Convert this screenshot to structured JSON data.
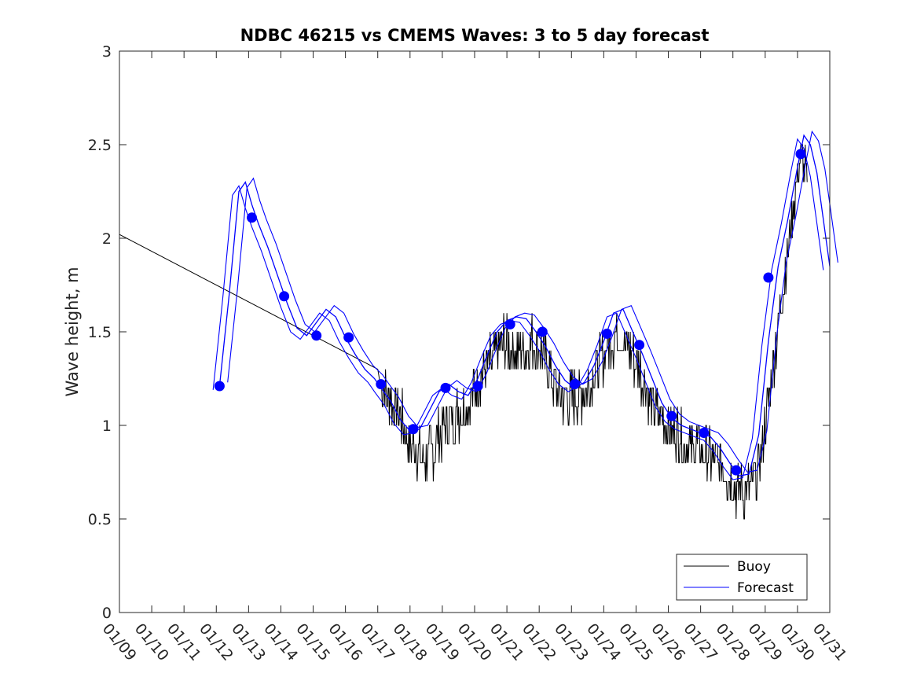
{
  "chart_data": {
    "type": "line",
    "title": "NDBC 46215 vs CMEMS Waves: 3 to 5 day forecast",
    "xlabel": "",
    "ylabel": "Wave height, m",
    "ylim": [
      0,
      3
    ],
    "xlim": [
      9,
      31
    ],
    "yticks": [
      "0",
      "0.5",
      "1",
      "1.5",
      "2",
      "2.5",
      "3"
    ],
    "xtick_labels": [
      "01/09",
      "01/10",
      "01/11",
      "01/12",
      "01/13",
      "01/14",
      "01/15",
      "01/16",
      "01/17",
      "01/18",
      "01/19",
      "01/20",
      "01/21",
      "01/22",
      "01/23",
      "01/24",
      "01/25",
      "01/26",
      "01/27",
      "01/28",
      "01/29",
      "01/30",
      "01/31"
    ],
    "grid": false,
    "legend": {
      "position": "bottom-right",
      "entries": [
        "Buoy",
        "Forecast"
      ]
    },
    "colors": {
      "buoy": "#000000",
      "forecast": "#0000ff"
    },
    "series": [
      {
        "name": "Buoy",
        "x": [
          9,
          17,
          17.1,
          17.4,
          17.7,
          18.0,
          18.3,
          18.5,
          18.8,
          19.1,
          19.4,
          19.7,
          20.0,
          20.3,
          20.6,
          20.9,
          21.2,
          21.5,
          21.8,
          22.1,
          22.4,
          22.7,
          23.0,
          23.3,
          23.6,
          23.9,
          24.2,
          24.5,
          24.8,
          25.1,
          25.4,
          25.7,
          26.0,
          26.3,
          26.6,
          26.9,
          27.2,
          27.5,
          27.8,
          28.1,
          28.4,
          28.7,
          29.0,
          29.3,
          29.6,
          29.9,
          30.1,
          30.3
        ],
        "y": [
          2.02,
          1.3,
          1.2,
          1.15,
          1.05,
          0.9,
          0.85,
          0.82,
          0.9,
          1.0,
          1.05,
          1.1,
          1.2,
          1.3,
          1.35,
          1.45,
          1.4,
          1.4,
          1.45,
          1.4,
          1.25,
          1.15,
          1.15,
          1.15,
          1.25,
          1.35,
          1.45,
          1.5,
          1.4,
          1.3,
          1.15,
          1.05,
          1.0,
          0.95,
          0.9,
          0.88,
          0.85,
          0.8,
          0.75,
          0.65,
          0.65,
          0.7,
          1.0,
          1.4,
          1.8,
          2.2,
          2.45,
          2.3
        ]
      },
      {
        "name": "Forecast",
        "x": [
          12.1,
          12.4,
          12.7,
          12.9,
          13.1,
          13.3,
          13.6,
          13.9,
          14.2,
          14.5,
          14.8,
          15.1,
          15.4,
          15.7,
          16.0,
          16.3,
          16.6,
          16.9,
          17.1,
          17.4,
          17.7,
          18.0,
          18.3,
          18.6,
          18.9,
          19.2,
          19.5,
          19.8,
          20.1,
          20.4,
          20.7,
          21.0,
          21.3,
          21.6,
          21.9,
          22.2,
          22.5,
          22.8,
          23.1,
          23.4,
          23.7,
          24.0,
          24.3,
          24.6,
          24.9,
          25.2,
          25.5,
          25.8,
          26.1,
          26.4,
          26.7,
          27.0,
          27.3,
          27.6,
          27.9,
          28.2,
          28.5,
          28.8,
          29.1,
          29.4,
          29.7,
          30.0,
          30.2,
          30.4,
          30.6,
          30.8,
          31.0
        ],
        "y": [
          1.21,
          1.7,
          2.25,
          2.3,
          2.18,
          2.08,
          1.95,
          1.8,
          1.65,
          1.52,
          1.48,
          1.55,
          1.62,
          1.58,
          1.47,
          1.38,
          1.3,
          1.25,
          1.2,
          1.13,
          1.03,
          0.97,
          0.98,
          1.08,
          1.18,
          1.22,
          1.18,
          1.16,
          1.25,
          1.38,
          1.5,
          1.56,
          1.58,
          1.57,
          1.5,
          1.42,
          1.32,
          1.24,
          1.2,
          1.23,
          1.32,
          1.45,
          1.6,
          1.62,
          1.5,
          1.38,
          1.25,
          1.12,
          1.04,
          1.0,
          0.98,
          0.96,
          0.94,
          0.88,
          0.8,
          0.73,
          0.74,
          0.95,
          1.45,
          1.85,
          2.1,
          2.38,
          2.55,
          2.5,
          2.35,
          2.1,
          1.85
        ]
      }
    ],
    "forecast_markers": {
      "x": [
        12.1,
        13.1,
        14.1,
        15.1,
        16.1,
        17.1,
        18.1,
        19.1,
        20.1,
        21.1,
        22.1,
        23.1,
        24.1,
        25.1,
        26.1,
        27.1,
        28.1,
        29.1,
        30.1
      ],
      "y": [
        1.21,
        2.11,
        1.69,
        1.48,
        1.47,
        1.22,
        0.98,
        1.2,
        1.21,
        1.54,
        1.5,
        1.22,
        1.49,
        1.43,
        1.05,
        0.96,
        0.76,
        1.79,
        2.45
      ]
    }
  }
}
